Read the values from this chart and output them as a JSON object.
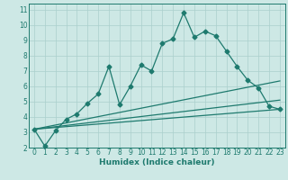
{
  "xlabel": "Humidex (Indice chaleur)",
  "background_color": "#cde8e5",
  "grid_color": "#aacfcc",
  "line_color": "#1e7a6e",
  "xlim": [
    -0.5,
    23.5
  ],
  "ylim": [
    2,
    11.4
  ],
  "xticks": [
    0,
    1,
    2,
    3,
    4,
    5,
    6,
    7,
    8,
    9,
    10,
    11,
    12,
    13,
    14,
    15,
    16,
    17,
    18,
    19,
    20,
    21,
    22,
    23
  ],
  "yticks": [
    2,
    3,
    4,
    5,
    6,
    7,
    8,
    9,
    10,
    11
  ],
  "line1_x": [
    0,
    1,
    2,
    3,
    4,
    5,
    6,
    7,
    8,
    9,
    10,
    11,
    12,
    13,
    14,
    15,
    16,
    17,
    18,
    19,
    20,
    21,
    22,
    23
  ],
  "line1_y": [
    3.2,
    2.1,
    3.1,
    3.85,
    4.2,
    4.9,
    5.5,
    7.3,
    4.8,
    6.0,
    7.4,
    7.0,
    8.8,
    9.1,
    10.8,
    9.2,
    9.6,
    9.3,
    8.3,
    7.3,
    6.4,
    5.9,
    4.7,
    4.5
  ],
  "line2_x": [
    0,
    23
  ],
  "line2_y": [
    3.2,
    4.5
  ],
  "line3_x": [
    0,
    23
  ],
  "line3_y": [
    3.2,
    6.35
  ],
  "line4_x": [
    0,
    23
  ],
  "line4_y": [
    3.2,
    5.1
  ],
  "marker": "D",
  "marker_size": 2.5,
  "line_width": 0.9,
  "tick_fontsize": 5.5,
  "xlabel_fontsize": 6.5
}
